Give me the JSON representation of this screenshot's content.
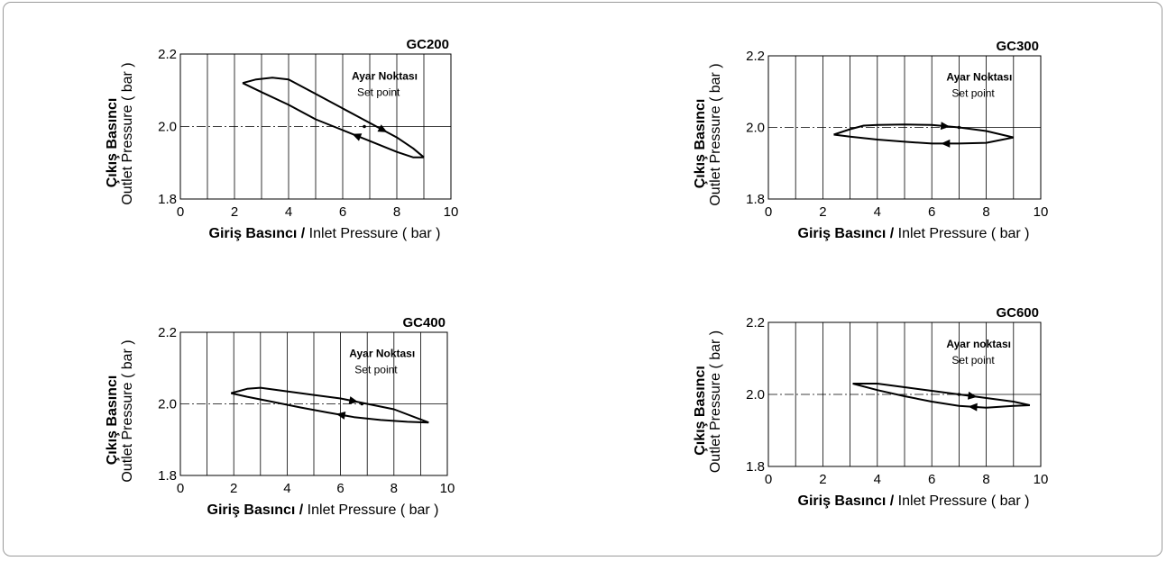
{
  "ylabel_line1": "Çıkış Basıncı",
  "ylabel_line2": "Outlet Pressure ( bar )",
  "xlabel_bold": "Giriş Basıncı /",
  "xlabel_normal": " Inlet Pressure ( bar )",
  "colors": {
    "line": "#000000",
    "grid": "#000000",
    "frame": "#9a9a9a"
  },
  "chart_data": [
    {
      "type": "line",
      "title": "GC200",
      "xlabel": "Giriş Basıncı / Inlet Pressure ( bar )",
      "ylabel": "Çıkış Basıncı Outlet Pressure ( bar )",
      "xlim": [
        0,
        10
      ],
      "ylim": [
        1.8,
        2.2
      ],
      "xticks": [
        "0",
        "2",
        "4",
        "6",
        "8",
        "10"
      ],
      "yticks": [
        "1.8",
        "2.0",
        "2.2"
      ],
      "setpoint": {
        "x": 6.8,
        "y": 2.0,
        "label1": "Ayar Noktası",
        "label2": "Set point"
      },
      "series": [
        {
          "x": [
            2.3,
            2.8,
            3.4,
            4.0,
            5.0,
            6.0,
            7.0,
            8.0,
            8.6,
            9.0
          ],
          "y": [
            2.12,
            2.13,
            2.135,
            2.13,
            2.09,
            2.05,
            2.01,
            1.97,
            1.94,
            1.915
          ]
        },
        {
          "x": [
            9.0,
            8.6,
            8.0,
            7.0,
            6.0,
            5.0,
            4.0,
            3.0,
            2.3
          ],
          "y": [
            1.915,
            1.915,
            1.93,
            1.96,
            1.99,
            2.02,
            2.06,
            2.095,
            2.12
          ]
        }
      ]
    },
    {
      "type": "line",
      "title": "GC300",
      "xlabel": "Giriş Basıncı / Inlet Pressure ( bar )",
      "ylabel": "Çıkış Basıncı Outlet Pressure ( bar )",
      "xlim": [
        0,
        10
      ],
      "ylim": [
        1.8,
        2.2
      ],
      "xticks": [
        "0",
        "2",
        "4",
        "6",
        "8",
        "10"
      ],
      "yticks": [
        "1.8",
        "2.0",
        "2.2"
      ],
      "setpoint": {
        "x": 7.0,
        "y": 2.0,
        "label1": "Ayar Noktası",
        "label2": "Set point"
      },
      "series": [
        {
          "x": [
            2.4,
            3.0,
            3.5,
            4.0,
            5.0,
            6.0,
            7.0,
            8.0,
            9.0
          ],
          "y": [
            1.98,
            1.995,
            2.005,
            2.007,
            2.008,
            2.007,
            2.0,
            1.99,
            1.972
          ]
        },
        {
          "x": [
            9.0,
            8.0,
            7.0,
            6.0,
            5.0,
            4.0,
            3.0,
            2.4
          ],
          "y": [
            1.972,
            1.957,
            1.955,
            1.955,
            1.96,
            1.966,
            1.974,
            1.98
          ]
        }
      ]
    },
    {
      "type": "line",
      "title": "GC400",
      "xlabel": "Giriş Basıncı / Inlet Pressure ( bar )",
      "ylabel": "Çıkış Basıncı Outlet Pressure ( bar )",
      "xlim": [
        0,
        10
      ],
      "ylim": [
        1.8,
        2.2
      ],
      "xticks": [
        "0",
        "2",
        "4",
        "6",
        "8",
        "10"
      ],
      "yticks": [
        "1.8",
        "2.0",
        "2.2"
      ],
      "setpoint": {
        "x": 6.8,
        "y": 2.0,
        "label1": "Ayar Noktası",
        "label2": "Set point"
      },
      "series": [
        {
          "x": [
            1.9,
            2.5,
            3.0,
            4.0,
            5.0,
            6.0,
            7.0,
            8.0,
            9.3
          ],
          "y": [
            2.03,
            2.042,
            2.045,
            2.035,
            2.025,
            2.015,
            2.0,
            1.985,
            1.948
          ]
        },
        {
          "x": [
            9.3,
            8.5,
            7.5,
            6.5,
            5.5,
            4.5,
            3.5,
            2.5,
            1.9
          ],
          "y": [
            1.948,
            1.95,
            1.955,
            1.963,
            1.976,
            1.99,
            2.005,
            2.02,
            2.03
          ]
        }
      ]
    },
    {
      "type": "line",
      "title": "GC600",
      "xlabel": "Giriş Basıncı / Inlet Pressure ( bar )",
      "ylabel": "Çıkış Basıncı Outlet Pressure ( bar )",
      "xlim": [
        0,
        10
      ],
      "ylim": [
        1.8,
        2.2
      ],
      "xticks": [
        "0",
        "2",
        "4",
        "6",
        "8",
        "10"
      ],
      "yticks": [
        "1.8",
        "2.0",
        "2.2"
      ],
      "setpoint": {
        "x": 7.0,
        "y": 2.0,
        "label1": "Ayar noktası",
        "label2": "Set point"
      },
      "series": [
        {
          "x": [
            3.1,
            4.0,
            5.0,
            6.0,
            7.0,
            8.0,
            9.0,
            9.6
          ],
          "y": [
            2.03,
            2.03,
            2.02,
            2.01,
            2.0,
            1.99,
            1.98,
            1.97
          ]
        },
        {
          "x": [
            9.6,
            9.0,
            8.0,
            7.0,
            6.0,
            5.0,
            4.0,
            3.1
          ],
          "y": [
            1.97,
            1.968,
            1.963,
            1.968,
            1.98,
            1.995,
            2.012,
            2.03
          ]
        }
      ]
    }
  ]
}
